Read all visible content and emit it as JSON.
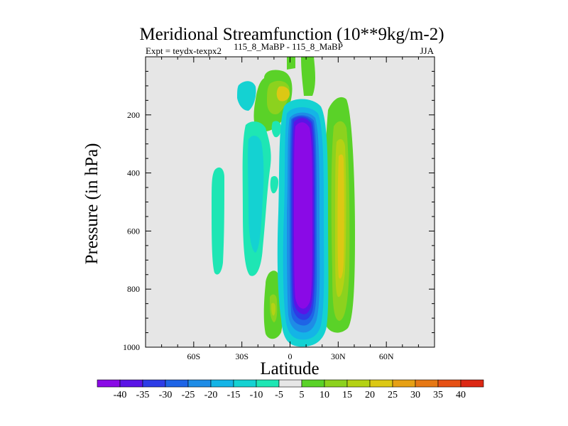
{
  "chart_data": {
    "type": "heatmap",
    "title": "Meridional Streamfunction (10**9kg/m-2)",
    "subtitle_left": "Expt = teydx-texpx2",
    "subtitle_center": "115_8_MaBP - 115_8_MaBP",
    "subtitle_right": "JJA",
    "xlabel": "Latitude",
    "ylabel": "Pressure (in hPa)",
    "x_range": [
      -90,
      90
    ],
    "y_range": [
      0,
      1000
    ],
    "y_inverted": true,
    "x_ticks": [
      {
        "value": -60,
        "label": "60S"
      },
      {
        "value": -30,
        "label": "30S"
      },
      {
        "value": 0,
        "label": "0"
      },
      {
        "value": 30,
        "label": "30N"
      },
      {
        "value": 60,
        "label": "60N"
      }
    ],
    "y_ticks": [
      {
        "value": 200,
        "label": "200"
      },
      {
        "value": 400,
        "label": "400"
      },
      {
        "value": 600,
        "label": "600"
      },
      {
        "value": 800,
        "label": "800"
      },
      {
        "value": 1000,
        "label": "1000"
      }
    ],
    "background_color": "#e6e6e6",
    "levels": [
      -40,
      -35,
      -30,
      -25,
      -20,
      -15,
      -10,
      -5,
      5,
      10,
      15,
      20,
      25,
      30,
      35,
      40
    ],
    "level_labels": [
      "-40",
      "-35",
      "-30",
      "-25",
      "-20",
      "-15",
      "-10",
      "-5",
      "5",
      "10",
      "15",
      "20",
      "25",
      "30",
      "35",
      "40"
    ],
    "colors": [
      "#8a0ae6",
      "#5a14e6",
      "#2d3ce6",
      "#1e64e6",
      "#1e8ce6",
      "#14b4e6",
      "#14d2d2",
      "#1ee6b4",
      "#e6e6e6",
      "#5ad228",
      "#8cd21e",
      "#b4d214",
      "#dcc814",
      "#e6a014",
      "#e67814",
      "#e65014",
      "#dc2814"
    ],
    "features": [
      {
        "name": "equatorial-cell-core",
        "value": -40,
        "lat_min": 2,
        "lat_max": 15,
        "p_top": 175,
        "p_bottom": 960
      },
      {
        "name": "northern-positive-cell",
        "value": 10,
        "lat_min": 20,
        "lat_max": 36,
        "p_top": 120,
        "p_bottom": 960
      },
      {
        "name": "southern-negative-cell",
        "value": -10,
        "lat_min": -22,
        "lat_max": -5,
        "p_top": 200,
        "p_bottom": 790
      },
      {
        "name": "stratospheric-positive-cell",
        "value": 20,
        "lat_min": -15,
        "lat_max": 8,
        "p_top": 20,
        "p_bottom": 200
      },
      {
        "name": "southern-positive-cell",
        "value": 15,
        "lat_min": -13,
        "lat_max": -6,
        "p_top": 720,
        "p_bottom": 960
      },
      {
        "name": "midlatitude-negative-cell",
        "value": -5,
        "lat_min": -48,
        "lat_max": -42,
        "p_top": 350,
        "p_bottom": 740
      }
    ]
  }
}
